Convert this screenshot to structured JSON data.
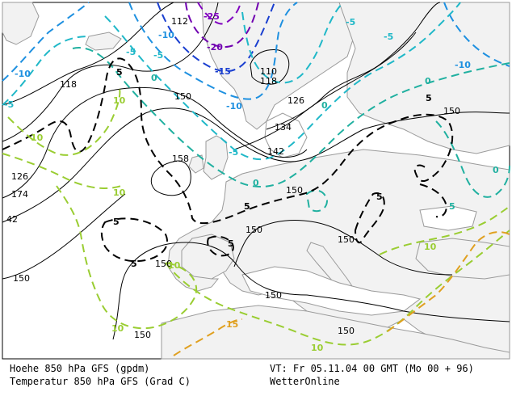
{
  "colors": {
    "land": "#f2f2f2",
    "sea": "#ffffff",
    "coast": "#9a9a9a",
    "height_contour": "#000000",
    "temp_minus25": "#8000c0",
    "temp_minus20": "#7000b0",
    "temp_minus15": "#1a3fd0",
    "temp_minus10": "#1e90e0",
    "temp_minus5": "#20b8c8",
    "temp_0": "#20b0a0",
    "temp_5": "#000000",
    "temp_10": "#9acd32",
    "temp_15": "#e0a020"
  },
  "height_labels": [
    {
      "text": "112"
    },
    {
      "text": "110"
    },
    {
      "text": "118"
    },
    {
      "text": "118"
    },
    {
      "text": "126"
    },
    {
      "text": "134"
    },
    {
      "text": "142"
    },
    {
      "text": "150"
    },
    {
      "text": "150"
    },
    {
      "text": "150"
    },
    {
      "text": "150"
    },
    {
      "text": "150"
    },
    {
      "text": "150"
    },
    {
      "text": "150"
    },
    {
      "text": "150"
    },
    {
      "text": "150"
    },
    {
      "text": "158"
    },
    {
      "text": "126"
    },
    {
      "text": "174"
    },
    {
      "text": "42"
    }
  ],
  "temp_labels": [
    {
      "text": "-25"
    },
    {
      "text": "-20"
    },
    {
      "text": "-15"
    },
    {
      "text": "-10"
    },
    {
      "text": "-10"
    },
    {
      "text": "-10"
    },
    {
      "text": "-10"
    },
    {
      "text": "-5"
    },
    {
      "text": "-5"
    },
    {
      "text": "-5"
    },
    {
      "text": "-5"
    },
    {
      "text": "-5"
    },
    {
      "text": "-5"
    },
    {
      "text": "0"
    },
    {
      "text": "0"
    },
    {
      "text": "0"
    },
    {
      "text": "0"
    },
    {
      "text": "0"
    },
    {
      "text": "5"
    },
    {
      "text": "5"
    },
    {
      "text": "5"
    },
    {
      "text": "5"
    },
    {
      "text": "5"
    },
    {
      "text": "5"
    },
    {
      "text": "5"
    },
    {
      "text": "10"
    },
    {
      "text": "10"
    },
    {
      "text": "10"
    },
    {
      "text": "10"
    },
    {
      "text": "10"
    },
    {
      "text": "10"
    },
    {
      "text": "15"
    }
  ],
  "footer": {
    "line1_left": "Hoehe 850 hPa GFS (gpdm)",
    "line2_left": "Temperatur 850 hPa GFS (Grad C)",
    "line1_right": "VT: Fr 05.11.04 00 GMT (Mo 00 + 96)",
    "line2_right": "WetterOnline"
  }
}
